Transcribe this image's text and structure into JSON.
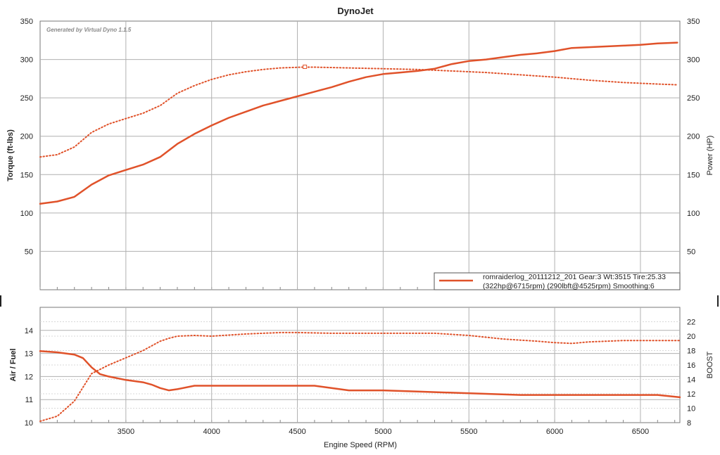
{
  "title": "DynoJet",
  "watermark": "Generated by Virtual Dyno 1.1.5",
  "legend": {
    "line1": "romraiderlog_20111212_201 Gear:3 Wt:3515 Tire:25.33",
    "line2": "(322hp@6715rpm) (290lbft@4525rpm) Smoothing:6",
    "position": "bottom-right"
  },
  "colors": {
    "series": "#e0522a",
    "grid": "#b0b0b0",
    "grid_minor": "#d8d8d8"
  },
  "chart_data": [
    {
      "type": "line",
      "title": "DynoJet",
      "xlabel": "",
      "ylabel": "Torque (ft-lbs)",
      "y2label": "Power (HP)",
      "xlim": [
        3000,
        6730
      ],
      "ylim": [
        0,
        350
      ],
      "y2lim": [
        0,
        350
      ],
      "xticks": [
        3500,
        4000,
        4500,
        5000,
        5500,
        6000,
        6500
      ],
      "yticks": [
        50,
        100,
        150,
        200,
        250,
        300,
        350
      ],
      "y2ticks": [
        50,
        100,
        150,
        200,
        250,
        300,
        350
      ],
      "grid": true,
      "series": [
        {
          "name": "Power (HP)",
          "axis": "right",
          "style": "solid",
          "x": [
            3000,
            3100,
            3200,
            3300,
            3400,
            3500,
            3600,
            3700,
            3800,
            3900,
            4000,
            4100,
            4200,
            4300,
            4400,
            4500,
            4600,
            4700,
            4800,
            4900,
            5000,
            5100,
            5200,
            5300,
            5400,
            5500,
            5600,
            5700,
            5800,
            5900,
            6000,
            6050,
            6100,
            6200,
            6300,
            6400,
            6500,
            6600,
            6715
          ],
          "y": [
            112,
            115,
            121,
            137,
            149,
            156,
            163,
            173,
            190,
            203,
            214,
            224,
            232,
            240,
            246,
            252,
            258,
            264,
            271,
            277,
            281,
            283,
            285,
            288,
            294,
            298,
            300,
            303,
            306,
            308,
            311,
            313,
            315,
            316,
            317,
            318,
            319,
            321,
            322
          ]
        },
        {
          "name": "Torque (ft-lbs)",
          "axis": "left",
          "style": "dotted",
          "x": [
            3000,
            3100,
            3200,
            3300,
            3400,
            3500,
            3600,
            3700,
            3800,
            3900,
            4000,
            4100,
            4200,
            4300,
            4400,
            4525,
            4600,
            4800,
            5000,
            5200,
            5400,
            5600,
            5800,
            6000,
            6200,
            6400,
            6600,
            6715
          ],
          "y": [
            173,
            176,
            186,
            205,
            216,
            223,
            230,
            240,
            256,
            266,
            274,
            280,
            284,
            287,
            289,
            290,
            290,
            289,
            288,
            287,
            285,
            283,
            280,
            277,
            273,
            270,
            268,
            267
          ]
        }
      ]
    },
    {
      "type": "line",
      "xlabel": "Engine Speed (RPM)",
      "ylabel": "Air / Fuel",
      "y2label": "BOOST",
      "xlim": [
        3000,
        6730
      ],
      "ylim": [
        10,
        15
      ],
      "y2lim": [
        8,
        24
      ],
      "xticks": [
        3500,
        4000,
        4500,
        5000,
        5500,
        6000,
        6500
      ],
      "yticks": [
        10,
        11,
        12,
        13,
        14
      ],
      "y2ticks": [
        8,
        10,
        12,
        14,
        16,
        18,
        20,
        22
      ],
      "grid": true,
      "series": [
        {
          "name": "Air / Fuel",
          "axis": "left",
          "style": "solid",
          "x": [
            3000,
            3100,
            3200,
            3250,
            3300,
            3350,
            3400,
            3500,
            3600,
            3650,
            3700,
            3750,
            3800,
            3900,
            4000,
            4200,
            4400,
            4600,
            4800,
            5000,
            5200,
            5400,
            5600,
            5800,
            6000,
            6200,
            6400,
            6600,
            6730
          ],
          "y": [
            13.1,
            13.05,
            12.95,
            12.8,
            12.4,
            12.1,
            12.0,
            11.85,
            11.75,
            11.65,
            11.5,
            11.4,
            11.45,
            11.6,
            11.6,
            11.6,
            11.6,
            11.6,
            11.4,
            11.4,
            11.35,
            11.3,
            11.25,
            11.2,
            11.2,
            11.2,
            11.2,
            11.2,
            11.1
          ]
        },
        {
          "name": "BOOST",
          "axis": "right",
          "style": "dotted",
          "x": [
            3000,
            3100,
            3200,
            3300,
            3400,
            3500,
            3600,
            3700,
            3750,
            3800,
            3900,
            4000,
            4200,
            4400,
            4500,
            4700,
            5000,
            5300,
            5500,
            5700,
            5900,
            6000,
            6100,
            6200,
            6400,
            6600,
            6730
          ],
          "y": [
            8.2,
            8.9,
            11.0,
            14.8,
            16.0,
            17.0,
            18.0,
            19.3,
            19.7,
            20.0,
            20.1,
            20.0,
            20.3,
            20.5,
            20.5,
            20.4,
            20.4,
            20.4,
            20.1,
            19.6,
            19.3,
            19.1,
            19.0,
            19.2,
            19.4,
            19.4,
            19.4
          ]
        }
      ]
    }
  ]
}
